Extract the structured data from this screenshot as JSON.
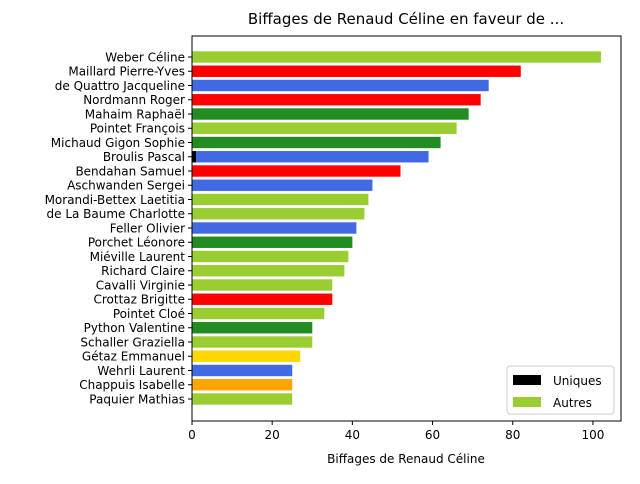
{
  "chart_data": {
    "type": "bar",
    "orientation": "horizontal",
    "title": "Biffages de Renaud Céline en faveur de ...",
    "xlabel": "Biffages de Renaud Céline",
    "ylabel": "",
    "xlim": [
      0,
      107
    ],
    "xticks": [
      0,
      20,
      40,
      60,
      80,
      100
    ],
    "grid": false,
    "legend_position": "lower-right",
    "legend": [
      {
        "label": "Uniques",
        "color": "#000000"
      },
      {
        "label": "Autres",
        "color": "#9acd32"
      }
    ],
    "categories": [
      "Weber Céline",
      "Maillard Pierre-Yves",
      "de Quattro Jacqueline",
      "Nordmann Roger",
      "Mahaim Raphaël",
      "Pointet François",
      "Michaud Gigon Sophie",
      "Broulis Pascal",
      "Bendahan Samuel",
      "Aschwanden Sergei",
      "Morandi-Bettex Laetitia",
      "de La Baume Charlotte",
      "Feller Olivier",
      "Porchet Léonore",
      "Miéville Laurent",
      "Richard Claire",
      "Cavalli Virginie",
      "Crottaz Brigitte",
      "Pointet Cloé",
      "Python Valentine",
      "Schaller Graziella",
      "Gétaz Emmanuel",
      "Wehrli Laurent",
      "Chappuis Isabelle",
      "Paquier Mathias"
    ],
    "series": [
      {
        "name": "Uniques",
        "values": [
          0,
          0,
          0,
          0,
          0,
          0,
          0,
          1,
          0,
          0,
          0,
          0,
          0,
          0,
          0,
          0,
          0,
          0,
          0,
          0,
          0,
          0,
          0,
          0,
          0
        ]
      },
      {
        "name": "Autres",
        "values": [
          102,
          82,
          74,
          72,
          69,
          66,
          62,
          58,
          52,
          45,
          44,
          43,
          41,
          40,
          39,
          38,
          35,
          35,
          33,
          30,
          30,
          27,
          25,
          25,
          25
        ],
        "colors": [
          "#9acd32",
          "#ff0000",
          "#4169e1",
          "#ff0000",
          "#228b22",
          "#9acd32",
          "#228b22",
          "#4169e1",
          "#ff0000",
          "#4169e1",
          "#9acd32",
          "#9acd32",
          "#4169e1",
          "#228b22",
          "#9acd32",
          "#9acd32",
          "#9acd32",
          "#ff0000",
          "#9acd32",
          "#228b22",
          "#9acd32",
          "#ffd700",
          "#4169e1",
          "#ffa500",
          "#9acd32"
        ]
      }
    ]
  }
}
